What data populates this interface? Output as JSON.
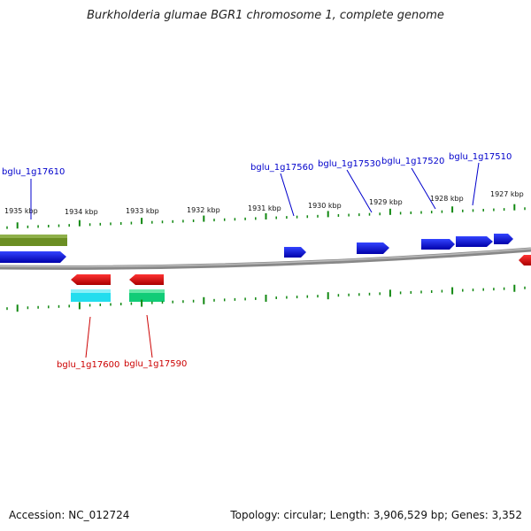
{
  "title": "Burkholderia glumae BGR1 chromosome 1, complete genome",
  "footer": {
    "accession": "Accession: NC_012724",
    "summary": "Topology: circular; Length: 3,906,529 bp; Genes: 3,352"
  },
  "colors": {
    "forward_gene": "#0000ee",
    "reverse_gene": "#ee0000",
    "tick": "#118811",
    "backbone": "#777777",
    "label_forward": "#0000cc",
    "label_reverse": "#cc0000",
    "feature_olive": "#6b8e23",
    "feature_cyan": "#22ddee",
    "feature_green": "#11cc77"
  },
  "scale": {
    "labels": [
      "1935 kbp",
      "1934 kbp",
      "1933 kbp",
      "1932 kbp",
      "1931 kbp",
      "1930 kbp",
      "1929 kbp",
      "1928 kbp",
      "1927 kbp"
    ]
  },
  "gene_labels": {
    "forward": [
      "bglu_1g17610",
      "bglu_1g17560",
      "bglu_1g17530",
      "bglu_1g17520",
      "bglu_1g17510"
    ],
    "reverse": [
      "bglu_1g17600",
      "bglu_1g17590"
    ]
  }
}
